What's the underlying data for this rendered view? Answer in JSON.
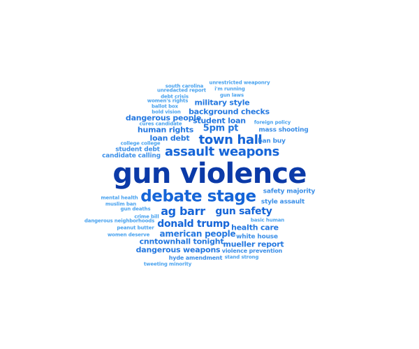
{
  "words": [
    {
      "text": "gun violence",
      "tier": "t1"
    },
    {
      "text": "debate stage",
      "tier": "t2"
    },
    {
      "text": "assault weapons",
      "tier": "t2"
    },
    {
      "text": "town hall",
      "tier": "t2"
    },
    {
      "text": "ag barr",
      "tier": "t2"
    },
    {
      "text": "gun safety",
      "tier": "t2"
    },
    {
      "text": "donald trump",
      "tier": "t2"
    },
    {
      "text": "5pm pt",
      "tier": "t3"
    },
    {
      "text": "american people",
      "tier": "t3"
    },
    {
      "text": "loan debt",
      "tier": "t3"
    },
    {
      "text": "background checks",
      "tier": "t3"
    },
    {
      "text": "student loan",
      "tier": "t3"
    },
    {
      "text": "military style",
      "tier": "t3"
    },
    {
      "text": "human rights",
      "tier": "t3"
    },
    {
      "text": "dangerous people",
      "tier": "t3"
    },
    {
      "text": "mueller report",
      "tier": "t3"
    },
    {
      "text": "dangerous weapons",
      "tier": "t3"
    },
    {
      "text": "cnntownhall tonight",
      "tier": "t3"
    },
    {
      "text": "health care",
      "tier": "t3"
    },
    {
      "text": "style assault",
      "tier": "t4"
    },
    {
      "text": "white house",
      "tier": "t4"
    },
    {
      "text": "mass shooting",
      "tier": "t4"
    },
    {
      "text": "ban buy",
      "tier": "t4"
    },
    {
      "text": "student debt",
      "tier": "t4"
    },
    {
      "text": "candidate calling",
      "tier": "t4"
    },
    {
      "text": "safety majority",
      "tier": "t4"
    },
    {
      "text": "violence prevention",
      "tier": "t4"
    },
    {
      "text": "hyde amendment",
      "tier": "t4"
    },
    {
      "text": "unrestricted weaponry",
      "tier": "t5"
    },
    {
      "text": "south carolina",
      "tier": "t5"
    },
    {
      "text": "unredacted report",
      "tier": "t5"
    },
    {
      "text": "i'm running",
      "tier": "t5"
    },
    {
      "text": "debt crisis",
      "tier": "t5"
    },
    {
      "text": "gun laws",
      "tier": "t5"
    },
    {
      "text": "women's rights",
      "tier": "t5"
    },
    {
      "text": "ballot box",
      "tier": "t5"
    },
    {
      "text": "bold vision",
      "tier": "t5"
    },
    {
      "text": "cures candidate",
      "tier": "t5"
    },
    {
      "text": "foreign policy",
      "tier": "t5"
    },
    {
      "text": "college college",
      "tier": "t5"
    },
    {
      "text": "mental health",
      "tier": "t5"
    },
    {
      "text": "muslim ban",
      "tier": "t5"
    },
    {
      "text": "gun deaths",
      "tier": "t5"
    },
    {
      "text": "crime bill",
      "tier": "t5"
    },
    {
      "text": "dangerous neighborhoods",
      "tier": "t5"
    },
    {
      "text": "basic human",
      "tier": "t5"
    },
    {
      "text": "peanut butter",
      "tier": "t5"
    },
    {
      "text": "women deserve",
      "tier": "t5"
    },
    {
      "text": "stand strong",
      "tier": "t5"
    },
    {
      "text": "tweeting minority",
      "tier": "t5"
    }
  ]
}
